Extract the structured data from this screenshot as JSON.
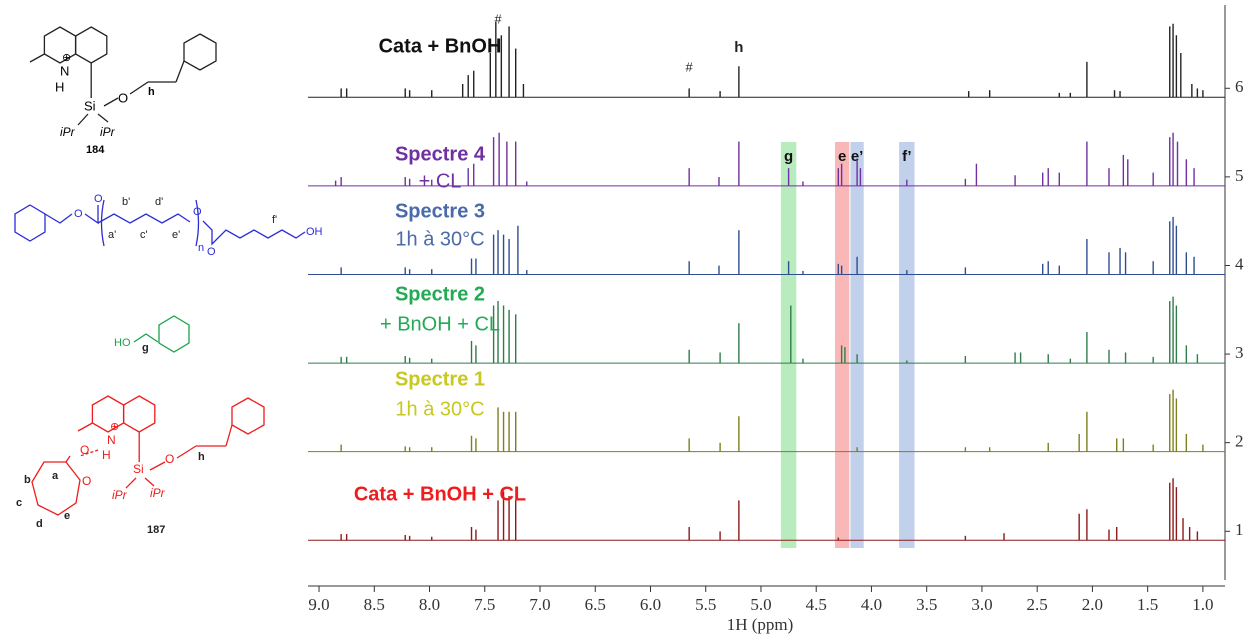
{
  "chart_data": {
    "type": "nmr",
    "xlabel": "1H (ppm)",
    "xlim": [
      9.1,
      0.8
    ],
    "xticks": [
      {
        "value": 9,
        "label": "9.0"
      },
      8.5,
      {
        "value": 8,
        "label": "8.0"
      },
      7.5,
      {
        "value": 7,
        "label": "7.0"
      },
      6.5,
      {
        "value": 6,
        "label": "6.0"
      },
      5.5,
      {
        "value": 5,
        "label": "5.0"
      },
      4.5,
      {
        "value": 4,
        "label": "4.0"
      },
      3.5,
      {
        "value": 3,
        "label": "3.0"
      },
      2.5,
      {
        "value": 2,
        "label": "2.0"
      },
      1.5,
      {
        "value": 1,
        "label": "1.0"
      }
    ],
    "ylim": [
      0.45,
      6.94
    ],
    "yticks": [
      1,
      2,
      3,
      4,
      5,
      6
    ],
    "series": [
      {
        "name": [
          "Cata + BnOH + CL"
        ],
        "color": "#8b1a1a",
        "label_color": "#ee1c1c",
        "x": [
          8.8,
          8.75,
          8.22,
          8.18,
          7.98,
          7.62,
          7.58,
          7.38,
          7.33,
          7.28,
          7.22,
          5.65,
          5.37,
          5.2,
          4.3,
          3.15,
          2.8,
          2.12,
          2.05,
          1.85,
          1.78,
          1.3,
          1.27,
          1.24,
          1.18,
          1.12,
          1.05
        ],
        "values": [
          0.07,
          0.07,
          0.06,
          0.05,
          0.04,
          0.15,
          0.12,
          0.45,
          0.55,
          0.5,
          0.45,
          0.15,
          0.1,
          0.45,
          0.03,
          0.05,
          0.08,
          0.3,
          0.35,
          0.12,
          0.15,
          0.65,
          0.7,
          0.6,
          0.25,
          0.15,
          0.1
        ]
      },
      {
        "name": [
          "Spectre 1",
          "1h à 30°C"
        ],
        "color": "#7f7f1e",
        "label_color": "#c8c820",
        "x": [
          8.8,
          8.22,
          8.18,
          7.98,
          7.62,
          7.58,
          7.38,
          7.33,
          7.28,
          7.22,
          5.65,
          5.37,
          5.2,
          4.13,
          3.15,
          2.93,
          2.4,
          2.12,
          2.05,
          1.78,
          1.72,
          1.45,
          1.3,
          1.27,
          1.24,
          1.15,
          1.0
        ],
        "values": [
          0.08,
          0.06,
          0.05,
          0.05,
          0.18,
          0.15,
          0.5,
          0.45,
          0.45,
          0.45,
          0.15,
          0.1,
          0.4,
          0.05,
          0.05,
          0.05,
          0.1,
          0.2,
          0.45,
          0.15,
          0.15,
          0.08,
          0.65,
          0.7,
          0.6,
          0.2,
          0.08
        ]
      },
      {
        "name": [
          "Spectre 2",
          "+ BnOH + CL"
        ],
        "color": "#2e7d4a",
        "label_color": "#22aa55",
        "x": [
          8.8,
          8.75,
          8.22,
          8.18,
          7.98,
          7.62,
          7.58,
          7.42,
          7.38,
          7.33,
          7.28,
          7.22,
          5.65,
          5.37,
          5.2,
          4.73,
          4.62,
          4.27,
          4.24,
          4.13,
          3.68,
          3.15,
          2.7,
          2.65,
          2.4,
          2.2,
          2.05,
          1.85,
          1.7,
          1.45,
          1.3,
          1.27,
          1.24,
          1.15,
          1.05
        ],
        "values": [
          0.07,
          0.07,
          0.08,
          0.06,
          0.05,
          0.25,
          0.2,
          0.65,
          0.7,
          0.65,
          0.6,
          0.55,
          0.15,
          0.12,
          0.45,
          0.65,
          0.05,
          0.2,
          0.18,
          0.1,
          0.03,
          0.08,
          0.12,
          0.12,
          0.1,
          0.05,
          0.35,
          0.15,
          0.12,
          0.07,
          0.7,
          0.75,
          0.65,
          0.2,
          0.1
        ]
      },
      {
        "name": [
          "Spectre 3",
          "1h à 30°C"
        ],
        "color": "#2f4e8f",
        "label_color": "#4a6aa8",
        "x": [
          8.8,
          8.22,
          8.18,
          7.98,
          7.62,
          7.58,
          7.42,
          7.38,
          7.33,
          7.28,
          7.2,
          7.12,
          5.65,
          5.38,
          5.2,
          4.75,
          4.62,
          4.3,
          4.27,
          4.13,
          3.68,
          3.15,
          2.45,
          2.4,
          2.3,
          2.05,
          1.85,
          1.75,
          1.7,
          1.45,
          1.3,
          1.27,
          1.24,
          1.15,
          1.08
        ],
        "values": [
          0.08,
          0.08,
          0.06,
          0.06,
          0.18,
          0.18,
          0.45,
          0.5,
          0.45,
          0.4,
          0.55,
          0.05,
          0.15,
          0.1,
          0.5,
          0.15,
          0.04,
          0.12,
          0.1,
          0.2,
          0.05,
          0.08,
          0.12,
          0.15,
          0.1,
          0.4,
          0.25,
          0.3,
          0.25,
          0.15,
          0.6,
          0.65,
          0.55,
          0.25,
          0.2
        ]
      },
      {
        "name": [
          "Spectre 4",
          "+ CL"
        ],
        "color": "#7030a0",
        "label_color": "#7030a0",
        "x": [
          8.85,
          8.8,
          8.22,
          8.18,
          7.98,
          7.65,
          7.6,
          7.42,
          7.37,
          7.3,
          7.22,
          7.12,
          5.65,
          5.38,
          5.2,
          4.75,
          4.62,
          4.3,
          4.27,
          4.13,
          4.1,
          3.68,
          3.15,
          3.05,
          2.7,
          2.45,
          2.4,
          2.3,
          2.05,
          1.85,
          1.72,
          1.68,
          1.45,
          1.3,
          1.27,
          1.23,
          1.15,
          1.08
        ],
        "values": [
          0.06,
          0.1,
          0.1,
          0.08,
          0.07,
          0.2,
          0.25,
          0.55,
          0.6,
          0.5,
          0.5,
          0.05,
          0.2,
          0.1,
          0.5,
          0.2,
          0.05,
          0.2,
          0.25,
          0.3,
          0.2,
          0.07,
          0.08,
          0.25,
          0.12,
          0.15,
          0.2,
          0.15,
          0.5,
          0.2,
          0.35,
          0.3,
          0.15,
          0.55,
          0.6,
          0.5,
          0.3,
          0.2
        ]
      },
      {
        "name": [
          "Cata + BnOH"
        ],
        "color": "#222222",
        "label_color": "#111111",
        "x": [
          8.8,
          8.75,
          8.22,
          8.18,
          7.98,
          7.7,
          7.65,
          7.6,
          7.45,
          7.4,
          7.35,
          7.28,
          7.22,
          7.15,
          5.65,
          5.37,
          5.2,
          3.12,
          2.93,
          2.3,
          2.2,
          2.05,
          1.8,
          1.75,
          1.3,
          1.27,
          1.24,
          1.2,
          1.1,
          1.05,
          1.0
        ],
        "values": [
          0.1,
          0.1,
          0.1,
          0.08,
          0.08,
          0.15,
          0.25,
          0.3,
          0.5,
          0.85,
          0.7,
          0.8,
          0.55,
          0.15,
          0.1,
          0.07,
          0.35,
          0.07,
          0.08,
          0.05,
          0.05,
          0.4,
          0.08,
          0.07,
          0.8,
          0.83,
          0.7,
          0.5,
          0.15,
          0.1,
          0.08
        ]
      }
    ],
    "highlights": [
      {
        "label": "g",
        "from": 4.82,
        "to": 4.68,
        "color": "#7ddc8a"
      },
      {
        "label": "e",
        "from": 4.33,
        "to": 4.2,
        "color": "#f47b7b"
      },
      {
        "label": "e’",
        "from": 4.19,
        "to": 4.07,
        "color": "#8eaadb"
      },
      {
        "label": "f’",
        "from": 3.75,
        "to": 3.61,
        "color": "#8eaadb"
      }
    ],
    "annotations": [
      {
        "text": "#",
        "x": 7.38
      },
      {
        "text": "#",
        "x": 5.65
      },
      {
        "text": "h",
        "x": 5.2
      }
    ]
  },
  "structures": [
    {
      "labels": [
        "N",
        "⊕",
        "H",
        "Si",
        "O",
        "h",
        "iPr",
        "iPr",
        "184"
      ]
    },
    {
      "labels": [
        "O",
        "O",
        "b'",
        "d'",
        "a'",
        "c'",
        "e'",
        "n",
        "O",
        "O",
        "f'",
        "OH"
      ]
    },
    {
      "labels": [
        "HO",
        "g"
      ]
    },
    {
      "labels": [
        "N",
        "⊕",
        "H",
        "Si",
        "O",
        "h",
        "iPr",
        "iPr",
        "O",
        "O",
        "a",
        "b",
        "c",
        "d",
        "e",
        "187"
      ]
    }
  ]
}
